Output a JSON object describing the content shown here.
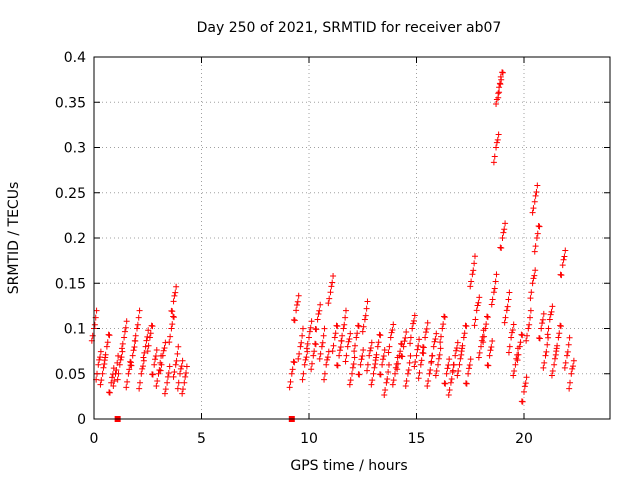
{
  "chart_data": {
    "type": "scatter",
    "title": "Day 250 of 2021, SRMTID for receiver ab07",
    "xlabel": "GPS time / hours",
    "ylabel": "SRMTID / TECUs",
    "xlim": [
      0,
      24
    ],
    "ylim": [
      0,
      0.4
    ],
    "xticks": [
      "0",
      "5",
      "10",
      "15",
      "20"
    ],
    "yticks": [
      "0",
      "0.05",
      "0.1",
      "0.15",
      "0.2",
      "0.25",
      "0.3",
      "0.35",
      "0.4"
    ],
    "grid": true,
    "series": [
      {
        "name": "SRMTID",
        "marker": "+",
        "color": "#ff0000",
        "x": [
          0.0,
          0.2,
          0.4,
          0.6,
          0.8,
          1.0,
          1.2,
          1.4,
          1.6,
          1.8,
          2.0,
          2.2,
          2.4,
          2.6,
          2.8,
          3.0,
          3.2,
          3.4,
          3.6,
          3.7,
          3.8,
          4.0,
          4.2,
          9.2,
          9.4,
          9.6,
          9.8,
          10.0,
          10.2,
          10.4,
          10.6,
          10.8,
          11.0,
          11.2,
          11.4,
          11.6,
          11.8,
          12.0,
          12.2,
          12.4,
          12.6,
          12.8,
          13.0,
          13.2,
          13.4,
          13.6,
          13.8,
          14.0,
          14.2,
          14.4,
          14.6,
          14.8,
          15.0,
          15.2,
          15.4,
          15.6,
          15.8,
          16.0,
          16.2,
          16.4,
          16.6,
          16.8,
          17.0,
          17.2,
          17.4,
          17.6,
          17.8,
          18.0,
          18.2,
          18.4,
          18.6,
          18.7,
          18.8,
          18.9,
          19.0,
          19.2,
          19.4,
          19.6,
          19.8,
          20.0,
          20.2,
          20.4,
          20.5,
          20.6,
          20.8,
          21.0,
          21.2,
          21.4,
          21.6,
          21.8,
          22.0,
          22.2
        ],
        "y": [
          0.1,
          0.06,
          0.05,
          0.08,
          0.04,
          0.05,
          0.06,
          0.09,
          0.05,
          0.07,
          0.1,
          0.05,
          0.08,
          0.09,
          0.06,
          0.05,
          0.07,
          0.04,
          0.1,
          0.13,
          0.06,
          0.05,
          0.04,
          0.05,
          0.12,
          0.08,
          0.06,
          0.09,
          0.07,
          0.11,
          0.08,
          0.06,
          0.14,
          0.09,
          0.07,
          0.1,
          0.08,
          0.05,
          0.09,
          0.06,
          0.11,
          0.07,
          0.05,
          0.08,
          0.06,
          0.04,
          0.09,
          0.05,
          0.07,
          0.08,
          0.05,
          0.1,
          0.07,
          0.06,
          0.09,
          0.05,
          0.08,
          0.06,
          0.1,
          0.05,
          0.04,
          0.07,
          0.06,
          0.09,
          0.05,
          0.16,
          0.12,
          0.08,
          0.1,
          0.07,
          0.14,
          0.3,
          0.36,
          0.37,
          0.2,
          0.12,
          0.09,
          0.06,
          0.08,
          0.03,
          0.1,
          0.15,
          0.24,
          0.2,
          0.1,
          0.07,
          0.11,
          0.06,
          0.09,
          0.17,
          0.07,
          0.05
        ]
      }
    ],
    "markers_zero": [
      1.1,
      9.2
    ]
  }
}
